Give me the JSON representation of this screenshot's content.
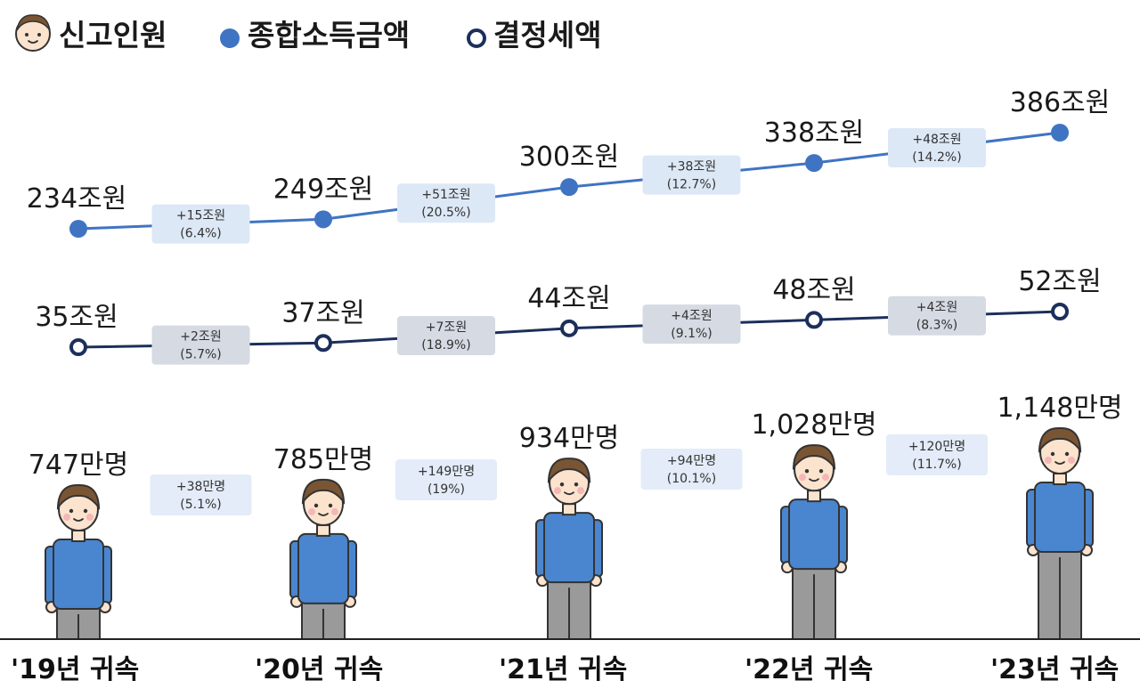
{
  "legend": {
    "people": "신고인원",
    "income": "종합소득금액",
    "tax": "결정세액"
  },
  "colors": {
    "income": "#3f74c3",
    "tax": "#1c2f5c",
    "income_box": "#dde8f6",
    "tax_box": "#d5dae3",
    "people_box": "#e3ecf8",
    "shirt": "#4a86cf",
    "pants": "#9a9a9a",
    "hair": "#7a5534",
    "skin": "#fbe3cd"
  },
  "chart_data": {
    "type": "line",
    "categories": [
      "'19년 귀속",
      "'20년 귀속",
      "'21년 귀속",
      "'22년 귀속",
      "'23년 귀속"
    ],
    "series": [
      {
        "name": "종합소득금액",
        "values": [
          234,
          249,
          300,
          338,
          386
        ],
        "labels": [
          "234조원",
          "249조원",
          "300조원",
          "338조원",
          "386조원"
        ],
        "changes": [
          [
            "+15조원",
            "(6.4%)"
          ],
          [
            "+51조원",
            "(20.5%)"
          ],
          [
            "+38조원",
            "(12.7%)"
          ],
          [
            "+48조원",
            "(14.2%)"
          ]
        ]
      },
      {
        "name": "결정세액",
        "values": [
          35,
          37,
          44,
          48,
          52
        ],
        "labels": [
          "35조원",
          "37조원",
          "44조원",
          "48조원",
          "52조원"
        ],
        "changes": [
          [
            "+2조원",
            "(5.7%)"
          ],
          [
            "+7조원",
            "(18.9%)"
          ],
          [
            "+4조원",
            "(9.1%)"
          ],
          [
            "+4조원",
            "(8.3%)"
          ]
        ]
      },
      {
        "name": "신고인원",
        "values": [
          747,
          785,
          934,
          1028,
          1148
        ],
        "labels": [
          "747만명",
          "785만명",
          "934만명",
          "1,028만명",
          "1,148만명"
        ],
        "changes": [
          [
            "+38만명",
            "(5.1%)"
          ],
          [
            "+149만명",
            "(19%)"
          ],
          [
            "+94만명",
            "(10.1%)"
          ],
          [
            "+120만명",
            "(11.7%)"
          ]
        ]
      }
    ]
  }
}
